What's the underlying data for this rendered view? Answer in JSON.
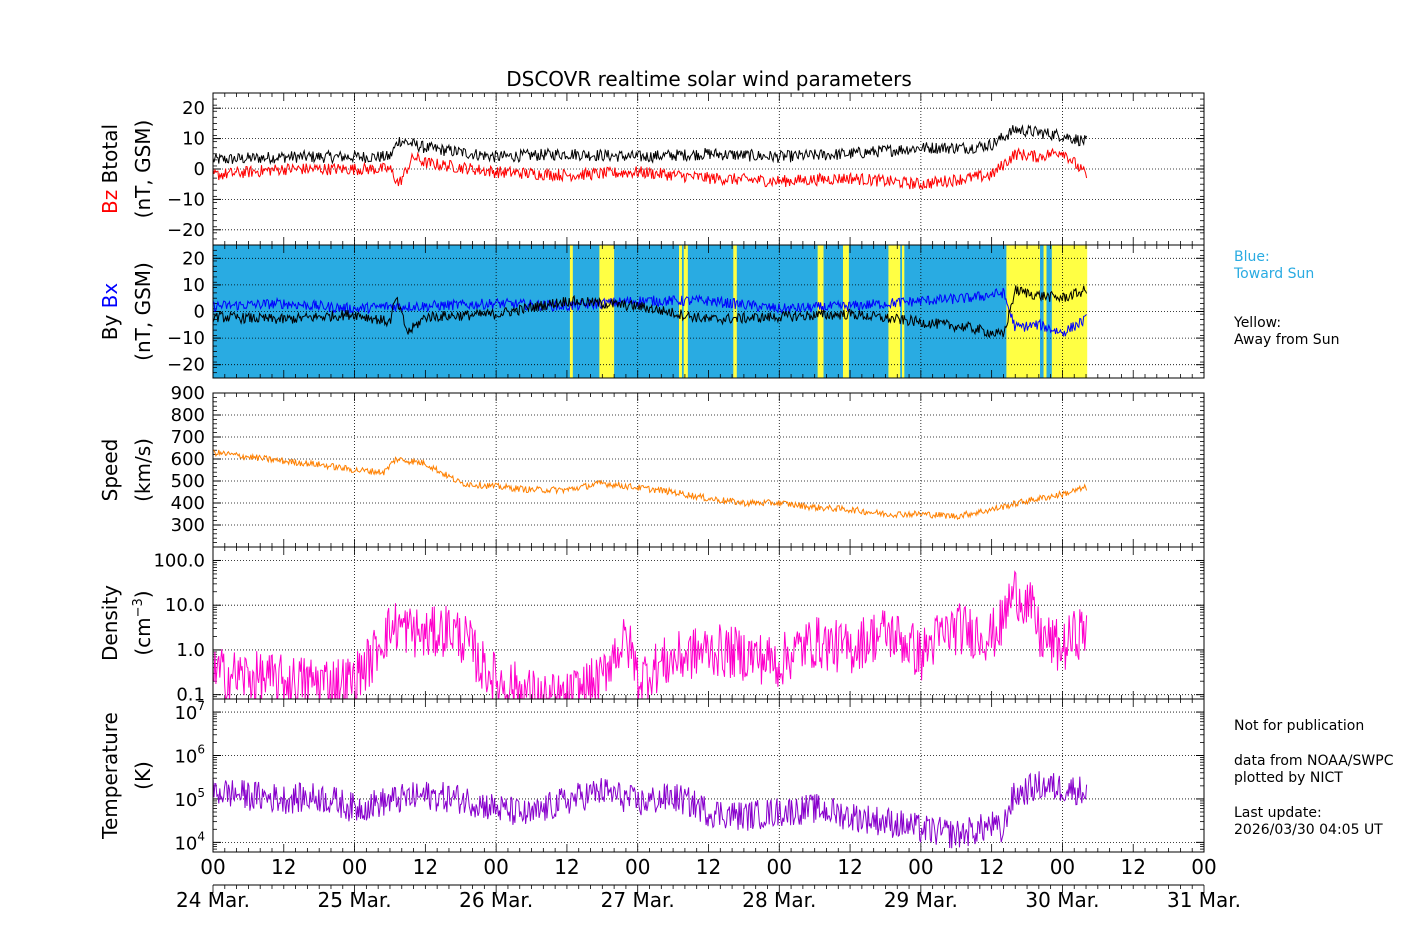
{
  "chart_data": {
    "type": "line",
    "title": "DSCOVR realtime solar wind parameters",
    "x_start_day_index": 0,
    "x_range_hours": [
      0,
      168
    ],
    "data_end_hours": 148.1,
    "x_tick_hours": [
      "00",
      "12",
      "00",
      "12",
      "00",
      "12",
      "00",
      "12",
      "00",
      "12",
      "00",
      "12",
      "00",
      "12",
      "00"
    ],
    "x_date_labels": [
      "24 Mar.",
      "25 Mar.",
      "26 Mar.",
      "27 Mar.",
      "28 Mar.",
      "29 Mar.",
      "30 Mar.",
      "31 Mar."
    ],
    "panels": [
      {
        "id": "mag",
        "ylabel_parts": [
          {
            "text": "Bz",
            "color": "#ff0000"
          },
          {
            "text": "Btotal",
            "color": "#000000"
          }
        ],
        "yunit": "(nT, GSM)",
        "ylim": [
          -25,
          25
        ],
        "yticks": [
          20,
          10,
          0,
          -10,
          -20
        ],
        "ytick_labels": [
          "20",
          "10",
          "0",
          "−10",
          "−20"
        ],
        "series": [
          {
            "name": "Btotal",
            "color": "#000000",
            "x_hours": [
              0,
              12,
              24,
              30,
              31.5,
              36,
              48,
              60,
              72,
              84,
              96,
              108,
              120,
              128,
              132,
              136,
              140,
              144,
              148
            ],
            "values": [
              3,
              4,
              4,
              4,
              9.5,
              7,
              4,
              5,
              4,
              5,
              4,
              5,
              7,
              7,
              8,
              13,
              12,
              11,
              9
            ]
          },
          {
            "name": "Bz",
            "color": "#ff0000",
            "x_hours": [
              0,
              12,
              24,
              30,
              31.5,
              34,
              36,
              48,
              60,
              72,
              84,
              96,
              108,
              120,
              128,
              132,
              136,
              140,
              144,
              148
            ],
            "values": [
              -2,
              0,
              0,
              0,
              -5,
              4,
              2,
              -1,
              -2,
              -1,
              -3,
              -4,
              -3,
              -5,
              -3,
              -2,
              5,
              4,
              6,
              -2
            ]
          }
        ]
      },
      {
        "id": "imf",
        "ylabel_parts": [
          {
            "text": "By",
            "color": "#000000"
          },
          {
            "text": "Bx",
            "color": "#0000ff"
          }
        ],
        "yunit": "(nT, GSM)",
        "ylim": [
          -25,
          25
        ],
        "yticks": [
          20,
          10,
          0,
          -10,
          -20
        ],
        "ytick_labels": [
          "20",
          "10",
          "0",
          "−10",
          "−20"
        ],
        "sector_bands_hours": [
          [
            60.5,
            61
          ],
          [
            65.5,
            68
          ],
          [
            79,
            79.5
          ],
          [
            79.8,
            80.5
          ],
          [
            88.2,
            88.8
          ],
          [
            102.5,
            103.5
          ],
          [
            106.8,
            107.8
          ],
          [
            114.5,
            116.5
          ],
          [
            116.8,
            117.2
          ],
          [
            134.5,
            140.2
          ],
          [
            140.8,
            141.3
          ],
          [
            142.2,
            148.2
          ]
        ],
        "series": [
          {
            "name": "Bx",
            "color": "#0000ff",
            "x_hours": [
              0,
              12,
              24,
              30,
              36,
              48,
              60,
              72,
              84,
              96,
              108,
              120,
              128,
              134,
              136,
              140,
              144,
              148
            ],
            "values": [
              2,
              3,
              1,
              2,
              2,
              3,
              2,
              4,
              4,
              1,
              2,
              4,
              5,
              7,
              -6,
              -5,
              -8,
              -3
            ]
          },
          {
            "name": "By",
            "color": "#000000",
            "x_hours": [
              0,
              12,
              24,
              30,
              31,
              33,
              36,
              48,
              60,
              72,
              84,
              96,
              108,
              120,
              128,
              134,
              136,
              140,
              144,
              148
            ],
            "values": [
              -2,
              -3,
              -1,
              -4,
              5,
              -8,
              -2,
              -1,
              4,
              2,
              -3,
              -2,
              -1,
              -4,
              -6,
              -9,
              8,
              6,
              5,
              8
            ]
          }
        ]
      },
      {
        "id": "speed",
        "ylabel_parts": [
          {
            "text": "Speed",
            "color": "#000000"
          }
        ],
        "yunit": "(km/s)",
        "ylim": [
          200,
          900
        ],
        "yticks": [
          900,
          800,
          700,
          600,
          500,
          400,
          300
        ],
        "ytick_labels": [
          "900",
          "800",
          "700",
          "600",
          "500",
          "400",
          "300"
        ],
        "series": [
          {
            "name": "Speed",
            "color": "#ff8000",
            "x_hours": [
              0,
              6,
              12,
              18,
              24,
              29,
              31,
              36,
              42,
              48,
              54,
              60,
              66,
              72,
              78,
              84,
              90,
              96,
              102,
              108,
              114,
              120,
              126,
              132,
              138,
              144,
              148
            ],
            "values": [
              630,
              610,
              590,
              575,
              550,
              540,
              600,
              580,
              490,
              475,
              460,
              460,
              490,
              470,
              450,
              420,
              400,
              400,
              380,
              370,
              350,
              350,
              340,
              370,
              410,
              440,
              470
            ]
          }
        ]
      },
      {
        "id": "density",
        "ylabel_parts": [
          {
            "text": "Density",
            "color": "#000000"
          }
        ],
        "yunit": "(cm",
        "yunit_sup": "−3",
        "yunit_close": ")",
        "yscale": "log",
        "ylim": [
          0.08,
          200
        ],
        "yticks": [
          100,
          10,
          1,
          0.1
        ],
        "ytick_labels": [
          "100.0",
          "10.0",
          "1.0",
          "0.1"
        ],
        "series": [
          {
            "name": "Density",
            "color": "#ff00cc",
            "x_hours": [
              0,
              12,
              24,
              27,
              31,
              36,
              40,
              45,
              48,
              54,
              56,
              60,
              66,
              70,
              72,
              78,
              84,
              90,
              96,
              102,
              108,
              114,
              120,
              126,
              132,
              134,
              136,
              140,
              144,
              148
            ],
            "values": [
              0.3,
              0.2,
              0.2,
              0.6,
              3.5,
              2,
              3,
              0.5,
              0.2,
              0.1,
              0.08,
              0.08,
              0.2,
              1.5,
              0.2,
              0.6,
              1.0,
              0.8,
              0.5,
              1.5,
              1.0,
              2.5,
              0.7,
              3,
              2,
              4,
              20,
              2,
              1,
              3
            ]
          }
        ]
      },
      {
        "id": "temperature",
        "ylabel_parts": [
          {
            "text": "Temperature",
            "color": "#000000"
          }
        ],
        "yunit": "(K)",
        "yscale": "log",
        "ylim": [
          6000,
          20000000
        ],
        "yticks": [
          10000000,
          1000000,
          100000,
          10000
        ],
        "ytick_base": "10",
        "ytick_exponents": [
          "7",
          "6",
          "5",
          "4"
        ],
        "series": [
          {
            "name": "Temperature",
            "color": "#8800cc",
            "x_hours": [
              0,
              6,
              12,
              18,
              24,
              30,
              36,
              42,
              48,
              54,
              60,
              66,
              72,
              78,
              84,
              90,
              96,
              102,
              108,
              114,
              120,
              126,
              130,
              132,
              134,
              136,
              140,
              144,
              148
            ],
            "values": [
              150000,
              120000,
              100000,
              110000,
              60000,
              90000,
              120000,
              100000,
              60000,
              40000,
              90000,
              150000,
              80000,
              110000,
              50000,
              40000,
              50000,
              60000,
              40000,
              30000,
              20000,
              15000,
              20000,
              25000,
              15000,
              120000,
              200000,
              180000,
              150000
            ]
          }
        ]
      }
    ]
  },
  "legend": {
    "blue_line1": "Blue:",
    "blue_line2": "Toward Sun",
    "yellow_line1": "Yellow:",
    "yellow_line2": "Away from Sun",
    "blue_color": "#29abe2",
    "yellow_color": "#ffff44"
  },
  "footer_notes": {
    "not_for_publication": "Not for publication",
    "source_line1": "data from NOAA/SWPC",
    "source_line2": "plotted by NICT",
    "last_update_label": "Last update:",
    "last_update_value": "2026/03/30 04:05 UT"
  }
}
